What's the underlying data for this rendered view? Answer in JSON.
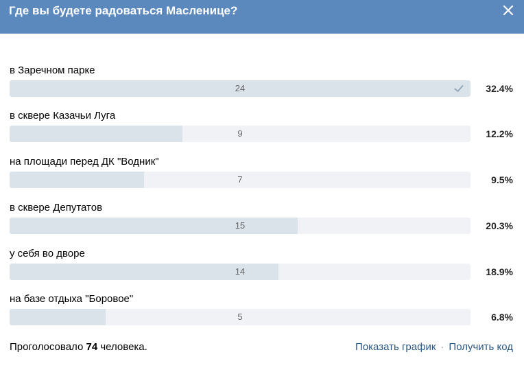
{
  "header": {
    "title": "Где вы будете радоваться Масленице?"
  },
  "options": [
    {
      "label": "в Заречном парке",
      "count": "24",
      "percent": "32.4%",
      "fill": 1.0,
      "voted": true
    },
    {
      "label": "в сквере Казачьи Луга",
      "count": "9",
      "percent": "12.2%",
      "fill": 0.375,
      "voted": false
    },
    {
      "label": "на площади перед ДК \"Водник\"",
      "count": "7",
      "percent": "9.5%",
      "fill": 0.292,
      "voted": false
    },
    {
      "label": "в сквере Депутатов",
      "count": "15",
      "percent": "20.3%",
      "fill": 0.625,
      "voted": false
    },
    {
      "label": "у себя во дворе",
      "count": "14",
      "percent": "18.9%",
      "fill": 0.583,
      "voted": false
    },
    {
      "label": "на базе отдыха \"Боровое\"",
      "count": "5",
      "percent": "6.8%",
      "fill": 0.208,
      "voted": false
    }
  ],
  "footer": {
    "voted_prefix": "Проголосовало",
    "voted_count": "74",
    "voted_suffix": "человека.",
    "show_chart": "Показать график",
    "separator": "·",
    "get_code": "Получить код"
  },
  "colors": {
    "header_bg": "#5b88bd",
    "bar_track": "#f0f2f5",
    "bar_fill": "#dae2ea",
    "link": "#2a5885"
  }
}
